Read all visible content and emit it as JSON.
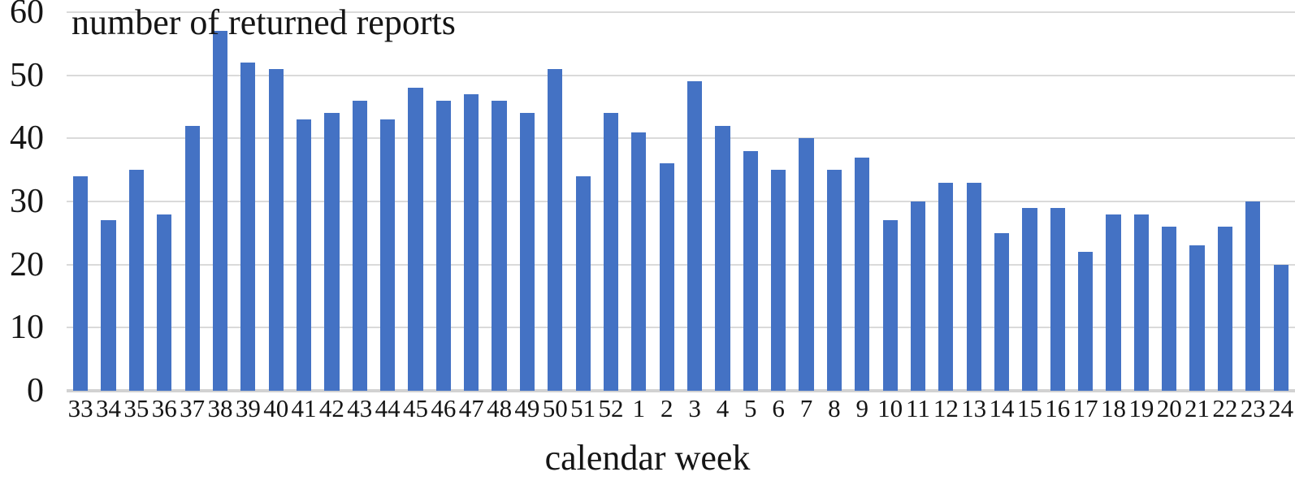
{
  "chart_data": {
    "type": "bar",
    "title": "number of returned reports",
    "xlabel": "calendar week",
    "ylabel": "",
    "categories": [
      "33",
      "34",
      "35",
      "36",
      "37",
      "38",
      "39",
      "40",
      "41",
      "42",
      "43",
      "44",
      "45",
      "46",
      "47",
      "48",
      "49",
      "50",
      "51",
      "52",
      "1",
      "2",
      "3",
      "4",
      "5",
      "6",
      "7",
      "8",
      "9",
      "10",
      "11",
      "12",
      "13",
      "14",
      "15",
      "16",
      "17",
      "18",
      "19",
      "20",
      "21",
      "22",
      "23",
      "24"
    ],
    "values": [
      34,
      27,
      35,
      28,
      42,
      57,
      52,
      51,
      43,
      44,
      46,
      43,
      48,
      46,
      47,
      46,
      44,
      51,
      34,
      44,
      41,
      36,
      49,
      42,
      38,
      35,
      40,
      35,
      37,
      27,
      30,
      33,
      33,
      25,
      29,
      29,
      22,
      28,
      28,
      26,
      23,
      26,
      30,
      20
    ],
    "ylim": [
      0,
      60
    ],
    "ytick_step": 10,
    "ytick_labels": [
      "0",
      "10",
      "20",
      "30",
      "40",
      "50",
      "60"
    ],
    "grid": "horizontal",
    "legend_position": "none",
    "bar_color": "#4472C4",
    "gridline_color": "#dadada",
    "axis_line_color": "#d2d2d2",
    "text_color": "#151515"
  }
}
